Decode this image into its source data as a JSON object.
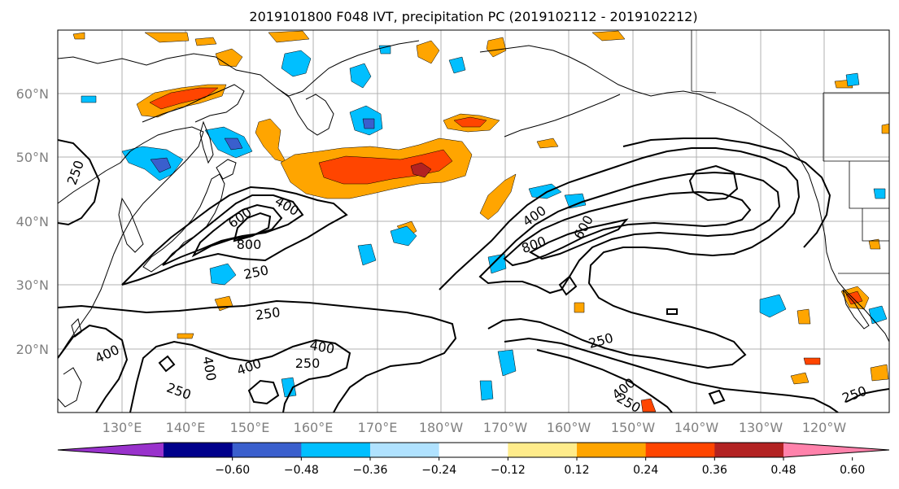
{
  "title": "2019101800 F048 IVT, precipitation PC (2019102112 - 2019102212)",
  "lat_labels": [
    "60°N",
    "50°N",
    "40°N",
    "30°N",
    "20°N"
  ],
  "lon_labels": [
    "130°E",
    "140°E",
    "150°E",
    "160°E",
    "170°E",
    "180°W",
    "170°W",
    "160°W",
    "150°W",
    "140°W",
    "130°W",
    "120°W"
  ],
  "colorbar": {
    "ticks": [
      "−0.60",
      "−0.48",
      "−0.36",
      "−0.24",
      "−0.12",
      "0.12",
      "0.24",
      "0.36",
      "0.48",
      "0.60"
    ],
    "colors": [
      "#9932cc",
      "#00008b",
      "#3a5fcd",
      "#00bfff",
      "#b0e2ff",
      "#ffffff",
      "#ffec8b",
      "#ffa500",
      "#ff4500",
      "#b22222",
      "#ff82ab"
    ]
  },
  "contour_labels": {
    "c1": "250",
    "c2": "600",
    "c3": "400",
    "c4": "800",
    "c5": "250",
    "c6": "250",
    "c7": "400",
    "c8": "400",
    "c9": "400",
    "c10": "250",
    "c11": "400",
    "c12": "250",
    "c13": "400",
    "c14": "600",
    "c15": "800",
    "c16": "250",
    "c17": "400",
    "c18": "250",
    "c19": "250"
  }
}
